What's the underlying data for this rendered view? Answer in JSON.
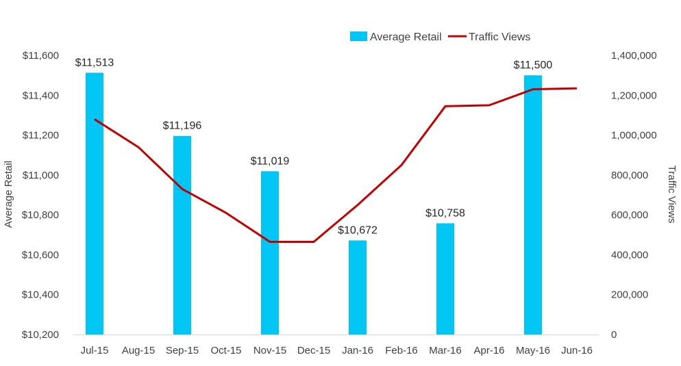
{
  "chart_data": {
    "type": "bar",
    "categories": [
      "Jul-15",
      "Aug-15",
      "Sep-15",
      "Oct-15",
      "Nov-15",
      "Dec-15",
      "Jan-16",
      "Feb-16",
      "Mar-16",
      "Apr-16",
      "May-16",
      "Jun-16"
    ],
    "series": [
      {
        "name": "Average Retail",
        "type": "bar",
        "axis": "left",
        "color": "#00c5f5",
        "values": [
          11513,
          null,
          11196,
          null,
          11019,
          null,
          10672,
          null,
          10758,
          null,
          11500,
          null
        ],
        "data_labels": [
          "$11,513",
          "",
          "$11,196",
          "",
          "$11,019",
          "",
          "$10,672",
          "",
          "$10,758",
          "",
          "$11,500",
          ""
        ]
      },
      {
        "name": "Traffic Views",
        "type": "line",
        "axis": "right",
        "color": "#c00000",
        "values": [
          1080000,
          940000,
          730000,
          610000,
          465000,
          465000,
          650000,
          850000,
          1145000,
          1150000,
          1230000,
          1235000
        ]
      }
    ],
    "ylabel": "Average Retail",
    "y2label": "Traffic Views",
    "ylim": [
      10200,
      11600
    ],
    "y2lim": [
      0,
      1400000
    ],
    "yticks": [
      "$10,200",
      "$10,400",
      "$10,600",
      "$10,800",
      "$11,000",
      "$11,200",
      "$11,400",
      "$11,600"
    ],
    "y2ticks": [
      "0",
      "200,000",
      "400,000",
      "600,000",
      "800,000",
      "1,000,000",
      "1,200,000",
      "1,400,000"
    ],
    "legend": "top-right",
    "grid": false
  }
}
